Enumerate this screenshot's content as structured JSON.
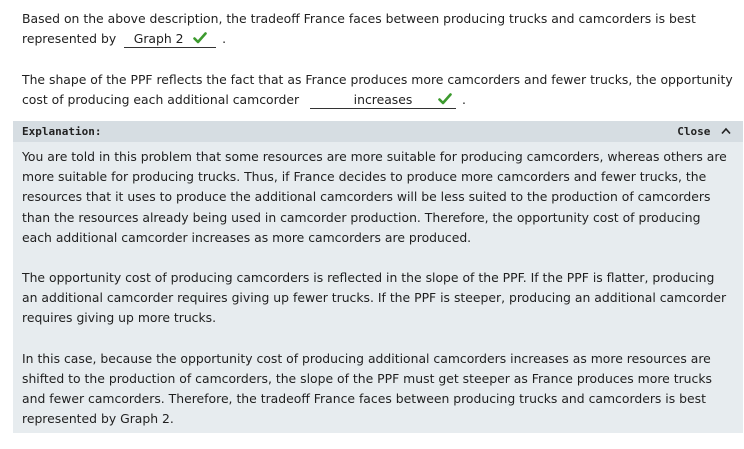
{
  "question1": {
    "text_before": "Based on the above description, the tradeoff France faces between producing trucks and camcorders is best represented by",
    "answer": "Graph 2",
    "text_after": "."
  },
  "question2": {
    "text_before": "The shape of the PPF reflects the fact that as France produces more camcorders and fewer trucks, the opportunity cost of producing each additional camcorder",
    "answer": "increases",
    "text_after": "."
  },
  "explanation": {
    "title": "Explanation:",
    "close_label": "Close",
    "paragraphs": [
      "You are told in this problem that some resources are more suitable for producing camcorders, whereas others are more suitable for producing trucks. Thus, if France decides to produce more camcorders and fewer trucks, the resources that it uses to produce the additional camcorders will be less suited to the production of camcorders than the resources already being used in camcorder production. Therefore, the opportunity cost of producing each additional camcorder increases as more camcorders are produced.",
      "The opportunity cost of producing camcorders is reflected in the slope of the PPF. If the PPF is flatter, producing an additional camcorder requires giving up fewer trucks. If the PPF is steeper, producing an additional camcorder requires giving up more trucks.",
      "In this case, because the opportunity cost of producing additional camcorders increases as more resources are shifted to the production of camcorders, the slope of the PPF must get steeper as France produces more trucks and fewer camcorders. Therefore, the tradeoff France faces between producing trucks and camcorders is best represented by Graph 2."
    ]
  },
  "colors": {
    "check": "#3c9a2e",
    "panel_bg": "#e7ecef",
    "header_bg": "#d6dde2"
  },
  "icons": {
    "correct": "checkmark-icon",
    "close": "chevron-up-icon"
  }
}
